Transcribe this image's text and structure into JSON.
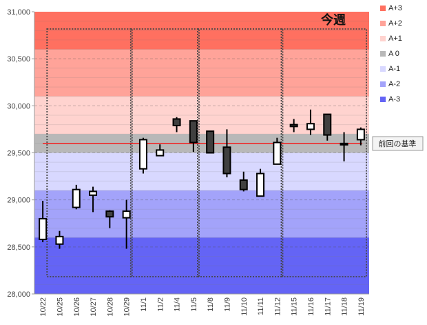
{
  "chart_data": {
    "type": "candlestick",
    "ylim": [
      28000,
      31000
    ],
    "yticks": [
      28000,
      28500,
      29000,
      29500,
      30000,
      30500,
      31000
    ],
    "ytick_labels": [
      "28,000",
      "28,500",
      "29,000",
      "29,500",
      "30,000",
      "30,500",
      "31,000"
    ],
    "categories": [
      "10/22",
      "10/25",
      "10/26",
      "10/27",
      "10/28",
      "10/29",
      "11/1",
      "11/2",
      "11/4",
      "11/5",
      "11/8",
      "11/9",
      "11/10",
      "11/11",
      "11/12",
      "11/15",
      "11/16",
      "11/17",
      "11/18",
      "11/19"
    ],
    "open": [
      28580,
      28530,
      28920,
      29050,
      28880,
      28810,
      29330,
      29470,
      29860,
      29840,
      29730,
      29560,
      29210,
      29040,
      29380,
      29800,
      29750,
      29910,
      29600,
      29640
    ],
    "close": [
      28800,
      28610,
      29110,
      29090,
      28820,
      28880,
      29640,
      29530,
      29790,
      29610,
      29500,
      29280,
      29110,
      29280,
      29610,
      29780,
      29810,
      29690,
      29590,
      29750
    ],
    "high": [
      28990,
      28670,
      29160,
      29140,
      28890,
      29000,
      29660,
      29590,
      29880,
      29840,
      29730,
      29750,
      29300,
      29330,
      29660,
      29860,
      29960,
      29910,
      29720,
      29770
    ],
    "low": [
      28550,
      28480,
      28900,
      28870,
      28700,
      28480,
      29280,
      29470,
      29720,
      29510,
      29500,
      29240,
      29090,
      29040,
      29380,
      29720,
      29690,
      29630,
      29410,
      29580
    ],
    "bands": [
      {
        "name": "A+3",
        "from": 30600,
        "to": 31000,
        "color": "#ff7060"
      },
      {
        "name": "A+2",
        "from": 30100,
        "to": 30600,
        "color": "#ffa399"
      },
      {
        "name": "A+1",
        "from": 29700,
        "to": 30100,
        "color": "#ffd3cf"
      },
      {
        "name": "A 0",
        "from": 29500,
        "to": 29700,
        "color": "#b8b8b8"
      },
      {
        "name": "A-1",
        "from": 29100,
        "to": 29500,
        "color": "#d8d8ff"
      },
      {
        "name": "A-2",
        "from": 28600,
        "to": 29100,
        "color": "#a3a3fa"
      },
      {
        "name": "A-3",
        "from": 28000,
        "to": 28600,
        "color": "#6464f5"
      }
    ],
    "reference_line": {
      "value": 29600,
      "label": "前回の基準",
      "color": "#ff0000"
    },
    "week_boxes": [
      {
        "from": "10/25",
        "to": "10/29"
      },
      {
        "from": "11/1",
        "to": "11/5"
      },
      {
        "from": "11/8",
        "to": "11/12"
      },
      {
        "from": "11/15",
        "to": "11/19"
      }
    ],
    "annotation": "今週"
  }
}
